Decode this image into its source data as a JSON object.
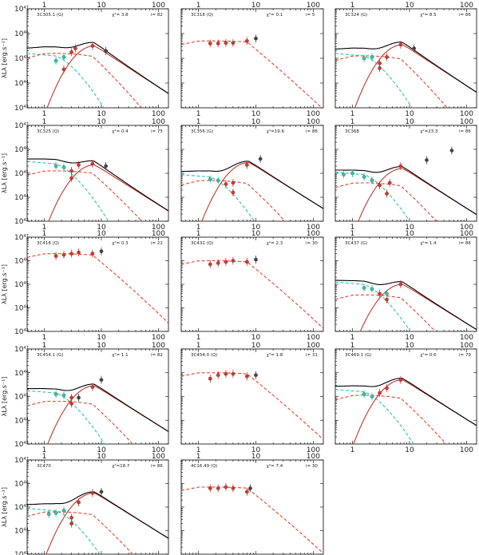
{
  "chart_data": {
    "type": "line",
    "layout": "grid of SED panels, 3 columns",
    "x_axis": {
      "scale": "log",
      "range": [
        0.5,
        150
      ],
      "ticks": [
        1,
        10,
        100
      ],
      "tick_labels": [
        "1",
        "10",
        "100"
      ]
    },
    "y_axis": {
      "scale": "log",
      "range_exp": [
        43,
        47
      ],
      "ticks": [
        43,
        44,
        45,
        46,
        47
      ],
      "tick_labels": [
        "10",
        "10",
        "10",
        "10",
        "10"
      ],
      "tick_exps": [
        "43",
        "44",
        "45",
        "46",
        "47"
      ]
    },
    "ylabel": "λLλ [erg.s⁻¹]",
    "series_legend": {
      "total": {
        "color": "#000000",
        "style": "solid"
      },
      "torus": {
        "color": "#c0392b",
        "style": "solid"
      },
      "stars": {
        "color": "#e8442c",
        "style": "dashed"
      },
      "agn": {
        "color": "#2ec4a8",
        "style": "dashed"
      }
    },
    "panels": [
      {
        "name": "3C305.1",
        "class": "(G)",
        "chi2": "3.8",
        "n": "82",
        "chi_label": "χ²= 3.8",
        "model": {
          "t_amp": 45.5,
          "t_w": 0.34,
          "t_cut": 0.1,
          "s_amp": 45.2,
          "s_w": 0.45,
          "agn": 45.1
        },
        "points": [
          [
            1.6,
            44.9,
            "g"
          ],
          [
            2.2,
            45.05,
            "g"
          ],
          [
            2.2,
            44.55,
            "r"
          ],
          [
            3.0,
            45.25,
            "r"
          ],
          [
            3.5,
            45.4,
            "r"
          ],
          [
            7.0,
            45.5,
            "r"
          ],
          [
            12,
            45.3,
            "k"
          ]
        ]
      },
      {
        "name": "3C318",
        "class": "(Q)",
        "chi2": "0.1",
        "n": "5",
        "chi_label": "χ²= 0.1",
        "model": {
          "t_amp": 0,
          "t_w": 0.3,
          "t_cut": 0.1,
          "s_amp": 45.7,
          "s_w": 0.8,
          "agn": 0
        },
        "points": [
          [
            1.6,
            45.6,
            "r"
          ],
          [
            2.2,
            45.6,
            "r"
          ],
          [
            3.0,
            45.62,
            "r"
          ],
          [
            4.0,
            45.62,
            "r"
          ],
          [
            7.0,
            45.7,
            "r"
          ],
          [
            10,
            45.8,
            "k"
          ]
        ]
      },
      {
        "name": "3C324",
        "class": "(G)",
        "chi2": "8.5",
        "n": "86",
        "chi_label": "χ²= 8.5",
        "model": {
          "t_amp": 45.55,
          "t_w": 0.34,
          "t_cut": 0.1,
          "s_amp": 45.1,
          "s_w": 0.45,
          "agn": 45.1
        },
        "points": [
          [
            1.6,
            45.0,
            "g"
          ],
          [
            2.2,
            45.05,
            "g"
          ],
          [
            3.0,
            44.8,
            "r"
          ],
          [
            3.0,
            44.6,
            "r"
          ],
          [
            4.0,
            45.05,
            "r"
          ],
          [
            7.0,
            45.55,
            "r"
          ],
          [
            12,
            45.4,
            "k"
          ]
        ]
      },
      {
        "name": "3C325",
        "class": "(Q)",
        "chi2": "0.4",
        "n": "75",
        "chi_label": "χ²= 0.4",
        "model": {
          "t_amp": 45.35,
          "t_w": 0.45,
          "t_cut": 0.2,
          "s_amp": 45.1,
          "s_w": 0.5,
          "agn": 45.4
        },
        "points": [
          [
            1.6,
            45.3,
            "g"
          ],
          [
            2.2,
            45.25,
            "g"
          ],
          [
            3.0,
            45.1,
            "r"
          ],
          [
            3.0,
            44.8,
            "r"
          ],
          [
            4.0,
            45.35,
            "r"
          ],
          [
            7.0,
            45.4,
            "r"
          ],
          [
            12,
            45.3,
            "k"
          ]
        ]
      },
      {
        "name": "3C356",
        "class": "(G)",
        "chi2": "19.6",
        "n": "86",
        "chi_label": "χ²=19.6",
        "model": {
          "t_amp": 45.45,
          "t_w": 0.34,
          "t_cut": 0.1,
          "s_amp": 44.7,
          "s_w": 0.45,
          "agn": 44.85
        },
        "points": [
          [
            1.6,
            44.75,
            "g"
          ],
          [
            2.2,
            44.7,
            "g"
          ],
          [
            3.0,
            44.55,
            "r"
          ],
          [
            4.0,
            44.6,
            "r"
          ],
          [
            4.0,
            44.2,
            "r"
          ],
          [
            7.0,
            45.35,
            "r"
          ],
          [
            12,
            45.6,
            "k"
          ]
        ]
      },
      {
        "name": "3C368",
        "class": "",
        "chi2": "23.3",
        "n": "86",
        "chi_label": "χ²=23.3",
        "model": {
          "t_amp": 45.2,
          "t_w": 0.34,
          "t_cut": 0.1,
          "s_amp": 44.6,
          "s_w": 0.45,
          "agn": 44.95
        },
        "points": [
          [
            0.7,
            44.95,
            "g"
          ],
          [
            1.0,
            45.0,
            "g"
          ],
          [
            1.6,
            44.85,
            "g"
          ],
          [
            2.2,
            44.7,
            "g"
          ],
          [
            3.0,
            44.5,
            "r"
          ],
          [
            4.0,
            44.15,
            "r"
          ],
          [
            4.5,
            44.6,
            "r"
          ],
          [
            7.0,
            45.3,
            "r"
          ],
          [
            20,
            45.55,
            "k"
          ],
          [
            55,
            45.95,
            "k"
          ]
        ]
      },
      {
        "name": "3C418",
        "class": "(Q)",
        "chi2": "0.3",
        "n": "22",
        "chi_label": "χ²= 0.3",
        "model": {
          "t_amp": 0,
          "t_w": 0.3,
          "t_cut": 0.1,
          "s_amp": 46.3,
          "s_w": 0.65,
          "agn": 0
        },
        "points": [
          [
            1.6,
            46.2,
            "r"
          ],
          [
            2.2,
            46.25,
            "r"
          ],
          [
            3.0,
            46.3,
            "r"
          ],
          [
            4.0,
            46.35,
            "r"
          ],
          [
            7.0,
            46.3,
            "r"
          ],
          [
            10,
            46.4,
            "k"
          ]
        ]
      },
      {
        "name": "3C432",
        "class": "(Q)",
        "chi2": "2.3",
        "n": "30",
        "chi_label": "χ²= 2.3",
        "model": {
          "t_amp": 0,
          "t_w": 0.3,
          "t_cut": 0.1,
          "s_amp": 46.0,
          "s_w": 0.7,
          "agn": 0
        },
        "points": [
          [
            1.6,
            45.85,
            "r"
          ],
          [
            2.2,
            45.9,
            "r"
          ],
          [
            3.0,
            45.95,
            "r"
          ],
          [
            4.0,
            46.0,
            "r"
          ],
          [
            7.0,
            45.95,
            "r"
          ],
          [
            10,
            46.05,
            "k"
          ]
        ]
      },
      {
        "name": "3C437",
        "class": "(G)",
        "chi2": "1.4",
        "n": "86",
        "chi_label": "χ²= 1.4",
        "model": {
          "t_amp": 45.0,
          "t_w": 0.34,
          "t_cut": 0.1,
          "s_amp": 44.55,
          "s_w": 0.45,
          "agn": 45.0
        },
        "points": [
          [
            1.6,
            44.85,
            "g"
          ],
          [
            2.2,
            44.8,
            "g"
          ],
          [
            3.0,
            44.6,
            "r"
          ],
          [
            4.0,
            44.35,
            "r"
          ],
          [
            4.0,
            44.6,
            "g"
          ],
          [
            7.0,
            45.0,
            "r"
          ]
        ]
      },
      {
        "name": "3C454.1",
        "class": "(G)",
        "chi2": "1.1",
        "n": "82",
        "chi_label": "χ²= 1.1",
        "model": {
          "t_amp": 45.45,
          "t_w": 0.34,
          "t_cut": 0.1,
          "s_amp": 44.8,
          "s_w": 0.45,
          "agn": 45.15
        },
        "points": [
          [
            1.6,
            45.1,
            "g"
          ],
          [
            2.2,
            45.05,
            "g"
          ],
          [
            3.0,
            44.95,
            "r"
          ],
          [
            3.0,
            44.7,
            "r"
          ],
          [
            4.0,
            44.95,
            "k"
          ],
          [
            7.0,
            45.4,
            "r"
          ],
          [
            10,
            45.7,
            "k"
          ]
        ]
      },
      {
        "name": "3C454.0",
        "class": "(Q)",
        "chi2": "1.8",
        "n": "31",
        "chi_label": "χ²= 1.8",
        "model": {
          "t_amp": 0,
          "t_w": 0.3,
          "t_cut": 0.1,
          "s_amp": 46.0,
          "s_w": 0.75,
          "agn": 0
        },
        "points": [
          [
            1.6,
            45.75,
            "r"
          ],
          [
            2.2,
            45.9,
            "r"
          ],
          [
            3.0,
            45.95,
            "r"
          ],
          [
            4.0,
            45.95,
            "r"
          ],
          [
            7.0,
            45.85,
            "r"
          ],
          [
            10,
            45.9,
            "k"
          ]
        ]
      },
      {
        "name": "3C469.1",
        "class": "(G)",
        "chi2": "0.6",
        "n": "79",
        "chi_label": "χ²= 0.6",
        "model": {
          "t_amp": 45.7,
          "t_w": 0.34,
          "t_cut": 0.1,
          "s_amp": 45.05,
          "s_w": 0.45,
          "agn": 45.2
        },
        "points": [
          [
            1.6,
            45.1,
            "g"
          ],
          [
            2.2,
            45.0,
            "g"
          ],
          [
            3.0,
            45.15,
            "r"
          ],
          [
            4.0,
            45.35,
            "r"
          ],
          [
            7.0,
            45.7,
            "r"
          ]
        ]
      },
      {
        "name": "3C470",
        "class": "",
        "chi2": "18.7",
        "n": "86",
        "chi_label": "χ²=18.7",
        "model": {
          "t_amp": 45.6,
          "t_w": 0.34,
          "t_cut": 0.1,
          "s_amp": 44.8,
          "s_w": 0.45,
          "agn": 44.85
        },
        "points": [
          [
            1.2,
            44.7,
            "g"
          ],
          [
            1.6,
            44.75,
            "g"
          ],
          [
            2.2,
            44.85,
            "g"
          ],
          [
            3.0,
            44.55,
            "r"
          ],
          [
            3.0,
            44.3,
            "r"
          ],
          [
            4.0,
            45.2,
            "r"
          ],
          [
            7.0,
            45.6,
            "r"
          ],
          [
            10,
            45.65,
            "k"
          ]
        ]
      },
      {
        "name": "4C16.49",
        "class": "(Q)",
        "chi2": "7.4",
        "n": "30",
        "chi_label": "χ²= 7.4",
        "model": {
          "t_amp": 0,
          "t_w": 0.3,
          "t_cut": 0.1,
          "s_amp": 45.85,
          "s_w": 0.75,
          "agn": 0
        },
        "points": [
          [
            1.6,
            45.8,
            "r"
          ],
          [
            2.2,
            45.8,
            "r"
          ],
          [
            3.0,
            45.85,
            "r"
          ],
          [
            4.0,
            45.8,
            "r"
          ],
          [
            7.0,
            45.65,
            "r"
          ],
          [
            8.0,
            45.8,
            "k"
          ]
        ]
      }
    ]
  }
}
